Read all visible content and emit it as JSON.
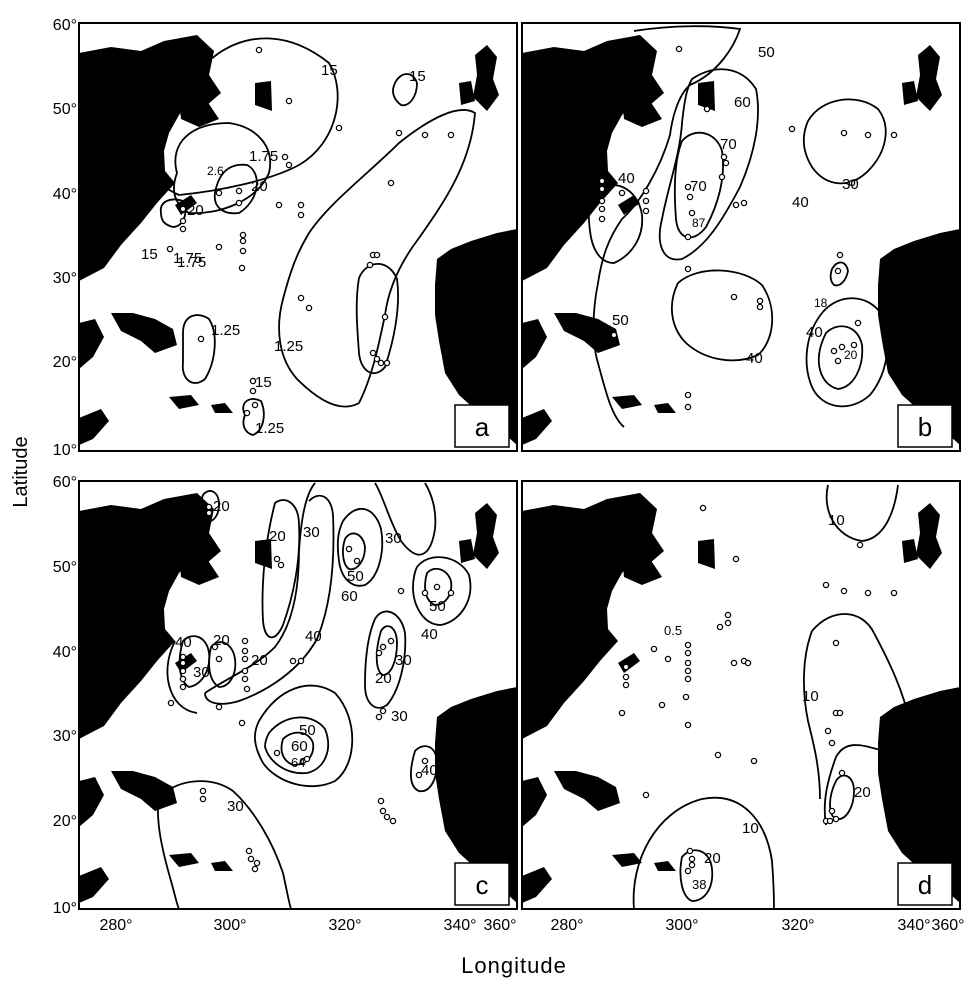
{
  "figure": {
    "ylabel": "Latitude",
    "xlabel": "Longitude",
    "lat_ticks": [
      "60°",
      "50°",
      "40°",
      "30°",
      "20°",
      "10°"
    ],
    "lon_ticks": [
      "280°",
      "300°",
      "320°",
      "340°",
      "360°"
    ],
    "colors": {
      "land": "#000000",
      "ocean": "#ffffff",
      "contour": "#000000"
    }
  },
  "panels": [
    {
      "id": "a",
      "letter": "a",
      "contour_labels": [
        "15",
        "15",
        "1.75",
        "1.75",
        "2.6",
        "20",
        "20",
        "15",
        "1.75",
        "1.25",
        "1.25",
        "15",
        "1.25"
      ]
    },
    {
      "id": "b",
      "letter": "b",
      "contour_labels": [
        "50",
        "60",
        "70",
        "70",
        "87",
        "40",
        "40",
        "30",
        "50",
        "40",
        "18",
        "40",
        "20"
      ]
    },
    {
      "id": "c",
      "letter": "c",
      "contour_labels": [
        "20",
        "20",
        "30",
        "30",
        "50",
        "60",
        "40",
        "50",
        "40",
        "30",
        "20",
        "30",
        "40",
        "20",
        "20",
        "30",
        "50",
        "60",
        "64",
        "40",
        "30"
      ]
    },
    {
      "id": "d",
      "letter": "d",
      "contour_labels": [
        "10",
        "0.5",
        "10",
        "20",
        "10",
        "20",
        "38"
      ]
    }
  ]
}
